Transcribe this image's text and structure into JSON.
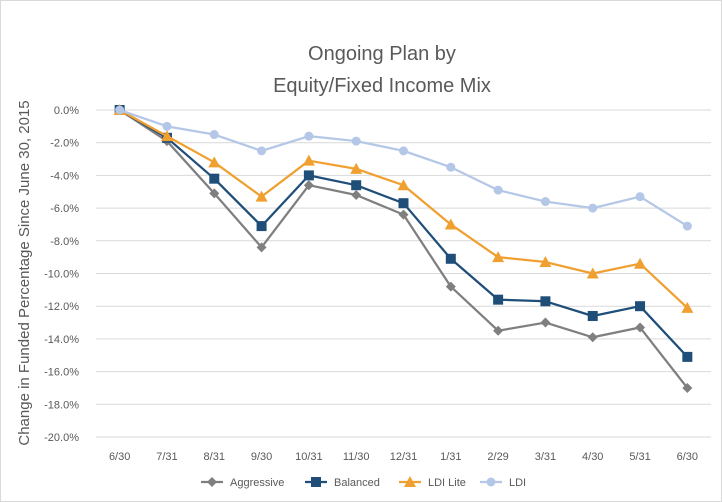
{
  "chart_data": {
    "type": "line",
    "title_line1": "Ongoing Plan by",
    "title_line2": "Equity/Fixed Income Mix",
    "xlabel": "",
    "ylabel": "Change in Funded Percentage Since June 30, 2015",
    "categories": [
      "6/30",
      "7/31",
      "8/31",
      "9/30",
      "10/31",
      "11/30",
      "12/31",
      "1/31",
      "2/29",
      "3/31",
      "4/30",
      "5/31",
      "6/30"
    ],
    "ylim": [
      -20,
      0
    ],
    "yticks": [
      0,
      -2,
      -4,
      -6,
      -8,
      -10,
      -12,
      -14,
      -16,
      -18,
      -20
    ],
    "ytick_labels": [
      "0.0%",
      "-2.0%",
      "-4.0%",
      "-6.0%",
      "-8.0%",
      "-10.0%",
      "-12.0%",
      "-14.0%",
      "-16.0%",
      "-18.0%",
      "-20.0%"
    ],
    "grid": "horizontal",
    "legend_position": "bottom",
    "series": [
      {
        "name": "Aggressive",
        "color": "#7f7f7f",
        "marker": "diamond",
        "values": [
          0,
          -1.9,
          -5.1,
          -8.4,
          -4.6,
          -5.2,
          -6.4,
          -10.8,
          -13.5,
          -13.0,
          -13.9,
          -13.3,
          -17.0
        ]
      },
      {
        "name": "Balanced",
        "color": "#1f4e79",
        "marker": "square",
        "values": [
          0,
          -1.7,
          -4.2,
          -7.1,
          -4.0,
          -4.6,
          -5.7,
          -9.1,
          -11.6,
          -11.7,
          -12.6,
          -12.0,
          -15.1
        ]
      },
      {
        "name": "LDI Lite",
        "color": "#f0a030",
        "marker": "triangle",
        "values": [
          0,
          -1.6,
          -3.2,
          -5.3,
          -3.1,
          -3.6,
          -4.6,
          -7.0,
          -9.0,
          -9.3,
          -10.0,
          -9.4,
          -12.1
        ]
      },
      {
        "name": "LDI",
        "color": "#b4c7e7",
        "marker": "circle",
        "values": [
          0,
          -1.0,
          -1.5,
          -2.5,
          -1.6,
          -1.9,
          -2.5,
          -3.5,
          -4.9,
          -5.6,
          -6.0,
          -5.3,
          -7.1
        ]
      }
    ]
  }
}
